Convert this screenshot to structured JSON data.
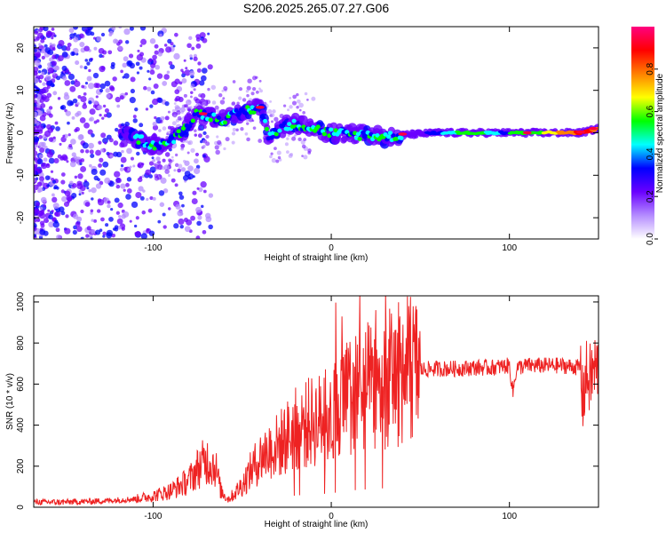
{
  "title": "S206.2025.265.07.27.G06",
  "chart_data": [
    {
      "type": "heatmap",
      "name": "spectrogram",
      "xlabel": "Height of straight line (km)",
      "ylabel": "Frequency (Hz)",
      "xlim": [
        -167,
        150
      ],
      "ylim": [
        -25,
        25
      ],
      "xticks": [
        -100,
        0,
        100
      ],
      "xtick_labels": [
        "-100",
        "0",
        "100"
      ],
      "yticks": [
        -20,
        -10,
        0,
        10,
        20
      ],
      "ytick_labels": [
        "-20",
        "-10",
        "0",
        "10",
        "20"
      ],
      "ridge": {
        "x": [
          -110,
          -100,
          -90,
          -80,
          -75,
          -70,
          -60,
          -50,
          -40,
          -35,
          -30,
          -20,
          -10,
          0,
          10,
          20,
          30,
          40,
          60,
          80,
          100,
          120,
          140,
          150
        ],
        "freq": [
          -1,
          -3,
          -2,
          2,
          5,
          4,
          3,
          5,
          6,
          -1,
          1,
          2,
          1,
          0,
          -0.5,
          -0.5,
          -1,
          -0.5,
          0,
          0,
          0,
          0,
          0,
          1
        ]
      },
      "colorbar": {
        "label": "Normalized spectral amplitude",
        "range": [
          0.0,
          1.0
        ],
        "ticks": [
          0.0,
          0.2,
          0.4,
          0.6,
          0.8
        ],
        "tick_labels": [
          "0.0",
          "0.2",
          "0.4",
          "0.6",
          "0.8"
        ],
        "colors": [
          "#ffffff",
          "#b48cff",
          "#6a00ff",
          "#0000ff",
          "#00ffff",
          "#00ff00",
          "#ffff00",
          "#ff8000",
          "#ff0000",
          "#ff0080"
        ]
      }
    },
    {
      "type": "line",
      "name": "snr",
      "xlabel": "Height of straight line (km)",
      "ylabel": "SNR (10 * v/v)",
      "xlim": [
        -167,
        150
      ],
      "ylim": [
        0,
        1030
      ],
      "xticks": [
        -100,
        0,
        100
      ],
      "xtick_labels": [
        "-100",
        "0",
        "100"
      ],
      "yticks": [
        0,
        200,
        400,
        600,
        800,
        1000
      ],
      "ytick_labels": [
        "0",
        "200",
        "400",
        "600",
        "800",
        "1000"
      ],
      "color": "#ee2222",
      "series": [
        {
          "name": "SNR",
          "x": [
            -167,
            -150,
            -130,
            -110,
            -100,
            -90,
            -80,
            -75,
            -70,
            -65,
            -62,
            -58,
            -55,
            -50,
            -45,
            -40,
            -35,
            -30,
            -25,
            -20,
            -15,
            -10,
            -5,
            0,
            5,
            10,
            15,
            20,
            25,
            30,
            35,
            40,
            45,
            50,
            60,
            70,
            80,
            90,
            100,
            102,
            104,
            110,
            120,
            130,
            140,
            141,
            143,
            145,
            147,
            150
          ],
          "y": [
            25,
            25,
            30,
            40,
            55,
            80,
            130,
            190,
            230,
            200,
            80,
            40,
            60,
            110,
            180,
            240,
            280,
            300,
            340,
            380,
            400,
            420,
            430,
            450,
            500,
            540,
            560,
            580,
            600,
            620,
            640,
            660,
            670,
            670,
            675,
            675,
            680,
            680,
            690,
            560,
            680,
            690,
            690,
            690,
            680,
            520,
            640,
            620,
            660,
            690
          ]
        }
      ]
    }
  ]
}
